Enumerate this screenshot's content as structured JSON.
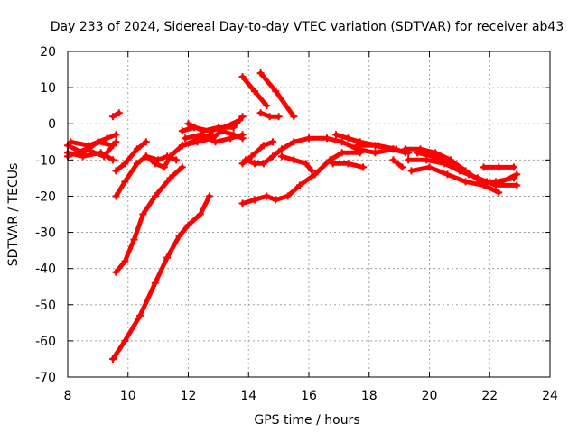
{
  "chart_data": {
    "type": "line",
    "title": "Day 233 of 2024, Sidereal Day-to-day VTEC variation (SDTVAR) for receiver ab43",
    "xlabel": "GPS time / hours",
    "ylabel": "SDTVAR / TECUs",
    "xlim": [
      8,
      24
    ],
    "ylim": [
      -70,
      20
    ],
    "xticks": [
      8,
      10,
      12,
      14,
      16,
      18,
      20,
      22,
      24
    ],
    "yticks": [
      20,
      10,
      0,
      -10,
      -20,
      -30,
      -40,
      -50,
      -60,
      -70
    ],
    "grid": true,
    "series_color": "#ff0000",
    "series": [
      {
        "name": "s1",
        "x": [
          8.0,
          8.5,
          9.0,
          9.5
        ],
        "y": [
          -6,
          -8,
          -5,
          -6
        ]
      },
      {
        "name": "s2",
        "x": [
          8.0,
          8.6,
          9.2,
          9.6
        ],
        "y": [
          -9,
          -7,
          -9,
          -5
        ]
      },
      {
        "name": "s3",
        "x": [
          8.1,
          8.7,
          9.3,
          9.6
        ],
        "y": [
          -5,
          -6,
          -4,
          -3
        ]
      },
      {
        "name": "s4",
        "x": [
          8.0,
          8.5,
          9.1,
          9.5
        ],
        "y": [
          -8,
          -9,
          -8,
          -10
        ]
      },
      {
        "name": "s5",
        "x": [
          9.5,
          9.7
        ],
        "y": [
          2,
          3
        ]
      },
      {
        "name": "s6",
        "x": [
          9.6,
          9.9,
          10.3,
          10.6
        ],
        "y": [
          -13,
          -11,
          -7,
          -5
        ]
      },
      {
        "name": "s7",
        "x": [
          9.6,
          9.9,
          10.3,
          10.6,
          11.0,
          11.3,
          11.6
        ],
        "y": [
          -20,
          -16,
          -11,
          -9,
          -10,
          -9,
          -10
        ]
      },
      {
        "name": "s8",
        "x": [
          10.6,
          10.9,
          11.2,
          11.4,
          11.8,
          12.4,
          12.8
        ],
        "y": [
          -9,
          -11,
          -12,
          -9,
          -6,
          -4,
          -3
        ]
      },
      {
        "name": "s9",
        "x": [
          9.6,
          9.9,
          10.2,
          10.5,
          10.9,
          11.4,
          11.8
        ],
        "y": [
          -41,
          -38,
          -32,
          -25,
          -20,
          -15,
          -12
        ]
      },
      {
        "name": "s10",
        "x": [
          9.5,
          9.9,
          10.4,
          10.9,
          11.3,
          11.7,
          12.0,
          12.4,
          12.7
        ],
        "y": [
          -65,
          -60,
          -53,
          -44,
          -37,
          -31,
          -28,
          -25,
          -20
        ]
      },
      {
        "name": "s11",
        "x": [
          11.8,
          12.3,
          12.8,
          13.1,
          13.5,
          13.8
        ],
        "y": [
          -6,
          -5,
          -4,
          -2,
          -3,
          -4
        ]
      },
      {
        "name": "s12",
        "x": [
          11.8,
          12.2,
          12.7,
          13.2,
          13.7
        ],
        "y": [
          -2,
          -1,
          -2,
          -1,
          1
        ]
      },
      {
        "name": "s13",
        "x": [
          11.9,
          12.4,
          12.9,
          13.4,
          13.8
        ],
        "y": [
          -4,
          -3,
          -5,
          -4,
          -3
        ]
      },
      {
        "name": "s14",
        "x": [
          12.0,
          12.5,
          13.0,
          13.5,
          13.8
        ],
        "y": [
          0,
          -2,
          -1,
          -1,
          2
        ]
      },
      {
        "name": "s15",
        "x": [
          13.8,
          14.2,
          14.6
        ],
        "y": [
          13,
          9,
          5
        ]
      },
      {
        "name": "s16",
        "x": [
          14.4,
          14.9,
          15.5
        ],
        "y": [
          14,
          9,
          2
        ]
      },
      {
        "name": "s17",
        "x": [
          14.4,
          14.7,
          15.0
        ],
        "y": [
          3,
          2,
          2
        ]
      },
      {
        "name": "s18",
        "x": [
          13.8,
          14.1,
          14.5,
          14.8
        ],
        "y": [
          -11,
          -9,
          -6,
          -5
        ]
      },
      {
        "name": "s19",
        "x": [
          13.9,
          14.2,
          14.5,
          14.8,
          15.1,
          15.5,
          16.0,
          16.6,
          17.1,
          17.6,
          18.2,
          18.8,
          19.2
        ],
        "y": [
          -10,
          -11,
          -11,
          -9,
          -7,
          -5,
          -4,
          -4,
          -5,
          -7,
          -8,
          -7,
          -8
        ]
      },
      {
        "name": "s20",
        "x": [
          16.9,
          17.3,
          17.7,
          18.3,
          18.9
        ],
        "y": [
          -3,
          -4,
          -5,
          -6,
          -7
        ]
      },
      {
        "name": "s21",
        "x": [
          15.1,
          15.5,
          15.9,
          16.1
        ],
        "y": [
          -9,
          -10,
          -11,
          -13
        ]
      },
      {
        "name": "s22",
        "x": [
          13.8,
          14.2,
          14.6,
          14.9,
          15.3,
          15.7,
          16.2,
          16.7,
          17.1,
          17.7
        ],
        "y": [
          -22,
          -21,
          -20,
          -21,
          -20,
          -17,
          -14,
          -10,
          -8,
          -8
        ]
      },
      {
        "name": "s23",
        "x": [
          16.8,
          17.3,
          17.8
        ],
        "y": [
          -11,
          -11,
          -12
        ]
      },
      {
        "name": "s24",
        "x": [
          17.6,
          18.2,
          18.8,
          19.3
        ],
        "y": [
          -6,
          -6,
          -7,
          -8
        ]
      },
      {
        "name": "s25",
        "x": [
          18.8,
          19.1
        ],
        "y": [
          -10,
          -12
        ]
      },
      {
        "name": "s26",
        "x": [
          19.2,
          19.7,
          20.2,
          20.7,
          21.2,
          21.7,
          22.2,
          22.8
        ],
        "y": [
          -7,
          -7,
          -8,
          -10,
          -13,
          -16,
          -16,
          -15
        ]
      },
      {
        "name": "s27",
        "x": [
          19.3,
          19.9,
          20.5,
          21.0,
          21.6,
          22.2,
          22.9
        ],
        "y": [
          -10,
          -10,
          -11,
          -13,
          -15,
          -17,
          -17
        ]
      },
      {
        "name": "s28",
        "x": [
          19.4,
          20.0,
          20.6,
          21.2,
          21.8,
          22.3
        ],
        "y": [
          -13,
          -12,
          -14,
          -16,
          -17,
          -19
        ]
      },
      {
        "name": "s29",
        "x": [
          19.6,
          20.1,
          20.7,
          21.3,
          21.9,
          22.4,
          22.9
        ],
        "y": [
          -8,
          -9,
          -11,
          -14,
          -16,
          -16,
          -14
        ]
      },
      {
        "name": "s30",
        "x": [
          21.8,
          22.3,
          22.8
        ],
        "y": [
          -12,
          -12,
          -12
        ]
      }
    ]
  }
}
